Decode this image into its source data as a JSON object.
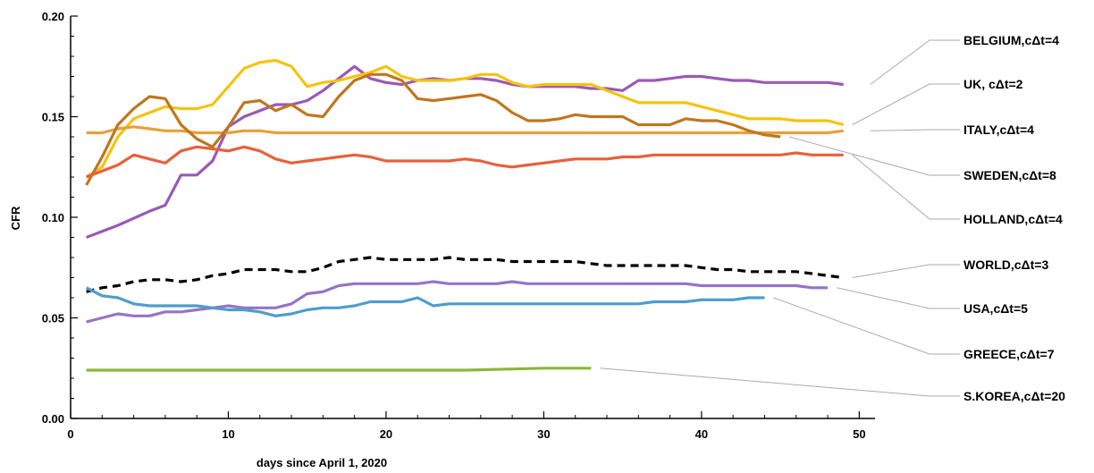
{
  "chart_data": {
    "type": "line",
    "title": "",
    "xlabel": "days since April 1, 2020",
    "ylabel": "CFR",
    "xlim": [
      0,
      51
    ],
    "ylim": [
      0,
      0.2
    ],
    "xticks": [
      0,
      10,
      20,
      30,
      40,
      50
    ],
    "xtick_labels": [
      "0",
      "10",
      "20",
      "30",
      "40",
      "50"
    ],
    "yticks": [
      0,
      0.05,
      0.1,
      0.15,
      0.2
    ],
    "ytick_labels": [
      "0.00",
      "0.05",
      "0.10",
      "0.15",
      "0.20"
    ],
    "grid": false,
    "legend_placement": "right",
    "series": [
      {
        "name": "BELGIUM,cΔt=4",
        "color": "#9b59b6",
        "dashed": false,
        "x": [
          1,
          3,
          5,
          6,
          7,
          8,
          9,
          10,
          11,
          12,
          13,
          14,
          15,
          16,
          17,
          18,
          19,
          20,
          21,
          22,
          23,
          24,
          25,
          26,
          27,
          28,
          29,
          30,
          31,
          32,
          33,
          34,
          35,
          36,
          37,
          38,
          39,
          40,
          41,
          42,
          43,
          44,
          45,
          46,
          47,
          48,
          49
        ],
        "y": [
          0.09,
          0.096,
          0.103,
          0.106,
          0.121,
          0.121,
          0.128,
          0.145,
          0.15,
          0.153,
          0.156,
          0.156,
          0.158,
          0.163,
          0.169,
          0.175,
          0.169,
          0.167,
          0.166,
          0.168,
          0.169,
          0.168,
          0.169,
          0.169,
          0.168,
          0.166,
          0.165,
          0.165,
          0.165,
          0.165,
          0.164,
          0.164,
          0.163,
          0.168,
          0.168,
          0.169,
          0.17,
          0.17,
          0.169,
          0.168,
          0.168,
          0.167,
          0.167,
          0.167,
          0.167,
          0.167,
          0.166
        ]
      },
      {
        "name": "UK, cΔt=2",
        "color": "#f5c30f",
        "dashed": false,
        "x": [
          1,
          2,
          3,
          4,
          5,
          6,
          7,
          8,
          9,
          10,
          11,
          12,
          13,
          14,
          15,
          16,
          17,
          18,
          19,
          20,
          21,
          22,
          23,
          24,
          25,
          26,
          27,
          28,
          29,
          30,
          31,
          32,
          33,
          34,
          35,
          36,
          37,
          38,
          39,
          40,
          41,
          42,
          43,
          44,
          45,
          46,
          47,
          48,
          49
        ],
        "y": [
          0.12,
          0.125,
          0.14,
          0.149,
          0.152,
          0.155,
          0.154,
          0.154,
          0.156,
          0.165,
          0.174,
          0.177,
          0.178,
          0.175,
          0.165,
          0.167,
          0.168,
          0.17,
          0.172,
          0.175,
          0.17,
          0.168,
          0.168,
          0.168,
          0.169,
          0.171,
          0.171,
          0.167,
          0.165,
          0.166,
          0.166,
          0.166,
          0.166,
          0.163,
          0.16,
          0.157,
          0.157,
          0.157,
          0.157,
          0.155,
          0.153,
          0.151,
          0.149,
          0.149,
          0.149,
          0.148,
          0.148,
          0.148,
          0.146
        ]
      },
      {
        "name": "ITALY,cΔt=4",
        "color": "#e8a03a",
        "dashed": false,
        "x": [
          1,
          2,
          3,
          4,
          5,
          6,
          7,
          8,
          9,
          10,
          11,
          12,
          13,
          14,
          15,
          16,
          17,
          18,
          19,
          20,
          21,
          22,
          23,
          24,
          25,
          26,
          27,
          28,
          29,
          30,
          31,
          32,
          33,
          34,
          35,
          36,
          37,
          38,
          39,
          40,
          41,
          42,
          43,
          44,
          45,
          46,
          47,
          48,
          49
        ],
        "y": [
          0.142,
          0.142,
          0.144,
          0.145,
          0.144,
          0.143,
          0.143,
          0.142,
          0.142,
          0.142,
          0.143,
          0.143,
          0.142,
          0.142,
          0.142,
          0.142,
          0.142,
          0.142,
          0.142,
          0.142,
          0.142,
          0.142,
          0.142,
          0.142,
          0.142,
          0.142,
          0.142,
          0.142,
          0.142,
          0.142,
          0.142,
          0.142,
          0.142,
          0.142,
          0.142,
          0.142,
          0.142,
          0.142,
          0.142,
          0.142,
          0.142,
          0.142,
          0.142,
          0.142,
          0.142,
          0.142,
          0.142,
          0.142,
          0.143
        ]
      },
      {
        "name": "SWEDEN,cΔt=8",
        "color": "#c0761e",
        "dashed": false,
        "x": [
          1,
          2,
          3,
          4,
          5,
          6,
          7,
          8,
          9,
          10,
          11,
          12,
          13,
          14,
          15,
          16,
          17,
          18,
          19,
          20,
          21,
          22,
          23,
          24,
          25,
          26,
          27,
          28,
          29,
          30,
          31,
          32,
          33,
          34,
          35,
          36,
          37,
          38,
          39,
          40,
          41,
          42,
          43,
          44,
          45
        ],
        "y": [
          0.116,
          0.13,
          0.146,
          0.154,
          0.16,
          0.159,
          0.146,
          0.139,
          0.135,
          0.145,
          0.157,
          0.158,
          0.153,
          0.156,
          0.151,
          0.15,
          0.16,
          0.168,
          0.171,
          0.171,
          0.168,
          0.159,
          0.158,
          0.159,
          0.16,
          0.161,
          0.158,
          0.152,
          0.148,
          0.148,
          0.149,
          0.151,
          0.15,
          0.15,
          0.15,
          0.146,
          0.146,
          0.146,
          0.149,
          0.148,
          0.148,
          0.146,
          0.143,
          0.141,
          0.14
        ]
      },
      {
        "name": "HOLLAND,cΔt=4",
        "color": "#e8603c",
        "dashed": false,
        "x": [
          1,
          2,
          3,
          4,
          5,
          6,
          7,
          8,
          9,
          10,
          11,
          12,
          13,
          14,
          15,
          16,
          17,
          18,
          19,
          20,
          21,
          22,
          23,
          24,
          25,
          26,
          27,
          28,
          29,
          30,
          31,
          32,
          33,
          34,
          35,
          36,
          37,
          38,
          39,
          40,
          41,
          42,
          43,
          44,
          45,
          46,
          47,
          48,
          49
        ],
        "y": [
          0.12,
          0.123,
          0.126,
          0.131,
          0.129,
          0.127,
          0.133,
          0.135,
          0.134,
          0.133,
          0.135,
          0.133,
          0.129,
          0.127,
          0.128,
          0.129,
          0.13,
          0.131,
          0.13,
          0.128,
          0.128,
          0.128,
          0.128,
          0.128,
          0.129,
          0.128,
          0.126,
          0.125,
          0.126,
          0.127,
          0.128,
          0.129,
          0.129,
          0.129,
          0.13,
          0.13,
          0.131,
          0.131,
          0.131,
          0.131,
          0.131,
          0.131,
          0.131,
          0.131,
          0.131,
          0.132,
          0.131,
          0.131,
          0.131
        ]
      },
      {
        "name": "WORLD,cΔt=3",
        "color": "#000000",
        "dashed": true,
        "x": [
          1,
          2,
          3,
          4,
          5,
          6,
          7,
          8,
          9,
          10,
          11,
          12,
          13,
          14,
          15,
          16,
          17,
          18,
          19,
          20,
          21,
          22,
          23,
          24,
          25,
          26,
          27,
          28,
          29,
          30,
          31,
          32,
          33,
          34,
          35,
          36,
          37,
          38,
          39,
          40,
          41,
          42,
          43,
          44,
          45,
          46,
          47,
          48,
          49
        ],
        "y": [
          0.063,
          0.065,
          0.066,
          0.068,
          0.069,
          0.069,
          0.068,
          0.069,
          0.071,
          0.072,
          0.074,
          0.074,
          0.074,
          0.073,
          0.073,
          0.075,
          0.078,
          0.079,
          0.08,
          0.079,
          0.079,
          0.079,
          0.079,
          0.08,
          0.079,
          0.079,
          0.079,
          0.078,
          0.078,
          0.078,
          0.078,
          0.078,
          0.077,
          0.076,
          0.076,
          0.076,
          0.076,
          0.076,
          0.076,
          0.075,
          0.074,
          0.074,
          0.073,
          0.073,
          0.073,
          0.073,
          0.072,
          0.071,
          0.07
        ]
      },
      {
        "name": "USA,cΔt=5",
        "color": "#9673c8",
        "dashed": false,
        "x": [
          1,
          2,
          3,
          4,
          5,
          6,
          7,
          8,
          9,
          10,
          11,
          12,
          13,
          14,
          15,
          16,
          17,
          18,
          19,
          20,
          21,
          22,
          23,
          24,
          25,
          26,
          27,
          28,
          29,
          30,
          31,
          32,
          33,
          34,
          35,
          36,
          37,
          38,
          39,
          40,
          41,
          42,
          43,
          44,
          45,
          46,
          47,
          48
        ],
        "y": [
          0.048,
          0.05,
          0.052,
          0.051,
          0.051,
          0.053,
          0.053,
          0.054,
          0.055,
          0.056,
          0.055,
          0.055,
          0.055,
          0.057,
          0.062,
          0.063,
          0.066,
          0.067,
          0.067,
          0.067,
          0.067,
          0.067,
          0.068,
          0.067,
          0.067,
          0.067,
          0.067,
          0.068,
          0.067,
          0.067,
          0.067,
          0.067,
          0.067,
          0.067,
          0.067,
          0.067,
          0.067,
          0.067,
          0.067,
          0.066,
          0.066,
          0.066,
          0.066,
          0.066,
          0.066,
          0.066,
          0.065,
          0.065
        ]
      },
      {
        "name": "GREECE,cΔt=7",
        "color": "#4f9dcb",
        "dashed": false,
        "x": [
          1,
          2,
          3,
          4,
          5,
          6,
          7,
          8,
          9,
          10,
          11,
          12,
          13,
          14,
          15,
          16,
          17,
          18,
          19,
          20,
          21,
          22,
          23,
          24,
          25,
          26,
          27,
          28,
          29,
          30,
          31,
          32,
          33,
          34,
          35,
          36,
          37,
          38,
          39,
          40,
          41,
          42,
          43,
          44
        ],
        "y": [
          0.065,
          0.061,
          0.06,
          0.057,
          0.056,
          0.056,
          0.056,
          0.056,
          0.055,
          0.054,
          0.054,
          0.053,
          0.051,
          0.052,
          0.054,
          0.055,
          0.055,
          0.056,
          0.058,
          0.058,
          0.058,
          0.06,
          0.056,
          0.057,
          0.057,
          0.057,
          0.057,
          0.057,
          0.057,
          0.057,
          0.057,
          0.057,
          0.057,
          0.057,
          0.057,
          0.057,
          0.058,
          0.058,
          0.058,
          0.059,
          0.059,
          0.059,
          0.06,
          0.06
        ]
      },
      {
        "name": "S.KOREA,cΔt=20",
        "color": "#8bb73a",
        "dashed": false,
        "x": [
          1,
          5,
          10,
          15,
          20,
          25,
          30,
          33
        ],
        "y": [
          0.024,
          0.024,
          0.024,
          0.024,
          0.024,
          0.024,
          0.025,
          0.025
        ]
      }
    ]
  }
}
